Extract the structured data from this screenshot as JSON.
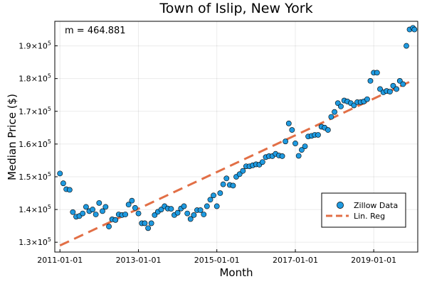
{
  "chart_data": {
    "type": "scatter",
    "title": "Town of Islip, New York",
    "xlabel": "Month",
    "ylabel": "Median Price ($)",
    "annotation": "m = 464.881",
    "grid": true,
    "legend_position": "bottom-right",
    "xlim": [
      "2010-11-14",
      "2020-02-15"
    ],
    "ylim": [
      127000,
      197500
    ],
    "x_ticks": [
      "2011-01-01",
      "2013-01-01",
      "2015-01-01",
      "2017-01-01",
      "2019-01-01"
    ],
    "y_ticks": [
      {
        "value": 130000,
        "mantissa": "1.3",
        "base": "10",
        "exp": "5"
      },
      {
        "value": 140000,
        "mantissa": "1.4",
        "base": "10",
        "exp": "5"
      },
      {
        "value": 150000,
        "mantissa": "1.5",
        "base": "10",
        "exp": "5"
      },
      {
        "value": 160000,
        "mantissa": "1.6",
        "base": "10",
        "exp": "5"
      },
      {
        "value": 170000,
        "mantissa": "1.7",
        "base": "10",
        "exp": "5"
      },
      {
        "value": 180000,
        "mantissa": "1.8",
        "base": "10",
        "exp": "5"
      },
      {
        "value": 190000,
        "mantissa": "1.9",
        "base": "10",
        "exp": "5"
      }
    ],
    "series": [
      {
        "name": "Zillow Data",
        "kind": "scatter",
        "color": "#1f9ae0",
        "points": [
          [
            "2011-01-01",
            151000
          ],
          [
            "2011-02-01",
            148000
          ],
          [
            "2011-03-01",
            146200
          ],
          [
            "2011-04-01",
            146000
          ],
          [
            "2011-05-01",
            139200
          ],
          [
            "2011-06-01",
            137800
          ],
          [
            "2011-07-01",
            138000
          ],
          [
            "2011-08-01",
            138800
          ],
          [
            "2011-09-01",
            140800
          ],
          [
            "2011-10-01",
            139500
          ],
          [
            "2011-11-01",
            140000
          ],
          [
            "2011-12-01",
            138500
          ],
          [
            "2012-01-01",
            142000
          ],
          [
            "2012-02-01",
            139500
          ],
          [
            "2012-03-01",
            140800
          ],
          [
            "2012-04-01",
            134800
          ],
          [
            "2012-05-01",
            137000
          ],
          [
            "2012-06-01",
            136800
          ],
          [
            "2012-07-01",
            138500
          ],
          [
            "2012-08-01",
            138300
          ],
          [
            "2012-09-01",
            138500
          ],
          [
            "2012-10-01",
            141500
          ],
          [
            "2012-11-01",
            142700
          ],
          [
            "2012-12-01",
            140500
          ],
          [
            "2013-01-01",
            138800
          ],
          [
            "2013-02-01",
            135800
          ],
          [
            "2013-03-01",
            135800
          ],
          [
            "2013-04-01",
            134300
          ],
          [
            "2013-05-01",
            135800
          ],
          [
            "2013-06-01",
            138300
          ],
          [
            "2013-07-01",
            139300
          ],
          [
            "2013-08-01",
            140000
          ],
          [
            "2013-09-01",
            141000
          ],
          [
            "2013-10-01",
            140300
          ],
          [
            "2013-11-01",
            140200
          ],
          [
            "2013-12-01",
            138300
          ],
          [
            "2014-01-01",
            139000
          ],
          [
            "2014-02-01",
            140300
          ],
          [
            "2014-03-01",
            141000
          ],
          [
            "2014-04-01",
            138800
          ],
          [
            "2014-05-01",
            137100
          ],
          [
            "2014-06-01",
            138300
          ],
          [
            "2014-07-01",
            139800
          ],
          [
            "2014-08-01",
            139800
          ],
          [
            "2014-09-01",
            138500
          ],
          [
            "2014-10-01",
            141000
          ],
          [
            "2014-11-01",
            143000
          ],
          [
            "2014-12-01",
            144300
          ],
          [
            "2015-01-01",
            141000
          ],
          [
            "2015-02-01",
            145000
          ],
          [
            "2015-03-01",
            147700
          ],
          [
            "2015-04-01",
            149500
          ],
          [
            "2015-05-01",
            147500
          ],
          [
            "2015-06-01",
            147300
          ],
          [
            "2015-07-01",
            150000
          ],
          [
            "2015-08-01",
            150800
          ],
          [
            "2015-09-01",
            151800
          ],
          [
            "2015-10-01",
            153200
          ],
          [
            "2015-11-01",
            153200
          ],
          [
            "2015-12-01",
            153500
          ],
          [
            "2016-01-01",
            153800
          ],
          [
            "2016-02-01",
            153700
          ],
          [
            "2016-03-01",
            154500
          ],
          [
            "2016-04-01",
            156000
          ],
          [
            "2016-05-01",
            156300
          ],
          [
            "2016-06-01",
            156300
          ],
          [
            "2016-07-01",
            157000
          ],
          [
            "2016-08-01",
            156500
          ],
          [
            "2016-09-01",
            156300
          ],
          [
            "2016-10-01",
            160800
          ],
          [
            "2016-11-01",
            166300
          ],
          [
            "2016-12-01",
            164300
          ],
          [
            "2017-01-01",
            160200
          ],
          [
            "2017-02-01",
            156400
          ],
          [
            "2017-03-01",
            158200
          ],
          [
            "2017-04-01",
            159300
          ],
          [
            "2017-05-01",
            162300
          ],
          [
            "2017-06-01",
            162500
          ],
          [
            "2017-07-01",
            162800
          ],
          [
            "2017-08-01",
            162800
          ],
          [
            "2017-09-01",
            165300
          ],
          [
            "2017-10-01",
            165000
          ],
          [
            "2017-11-01",
            164300
          ],
          [
            "2017-12-01",
            168300
          ],
          [
            "2018-01-01",
            169800
          ],
          [
            "2018-02-01",
            172500
          ],
          [
            "2018-03-01",
            171500
          ],
          [
            "2018-04-01",
            173300
          ],
          [
            "2018-05-01",
            173000
          ],
          [
            "2018-06-01",
            172500
          ],
          [
            "2018-07-01",
            171800
          ],
          [
            "2018-08-01",
            172800
          ],
          [
            "2018-09-01",
            172800
          ],
          [
            "2018-10-01",
            173000
          ],
          [
            "2018-11-01",
            173700
          ],
          [
            "2018-12-01",
            179300
          ],
          [
            "2019-01-01",
            181800
          ],
          [
            "2019-02-01",
            181800
          ],
          [
            "2019-03-01",
            176800
          ],
          [
            "2019-04-01",
            175800
          ],
          [
            "2019-05-01",
            176200
          ],
          [
            "2019-06-01",
            176000
          ],
          [
            "2019-07-01",
            177800
          ],
          [
            "2019-08-01",
            176800
          ],
          [
            "2019-09-01",
            179300
          ],
          [
            "2019-10-01",
            178300
          ],
          [
            "2019-11-01",
            190000
          ],
          [
            "2019-12-01",
            195000
          ],
          [
            "2020-01-01",
            195500
          ],
          [
            "2020-01-15",
            195000
          ]
        ]
      },
      {
        "name": "Lin. Reg",
        "kind": "line",
        "color": "#e26f46",
        "dashed": true,
        "points": [
          [
            "2011-01-01",
            129000
          ],
          [
            "2019-12-01",
            179000
          ]
        ]
      }
    ]
  }
}
